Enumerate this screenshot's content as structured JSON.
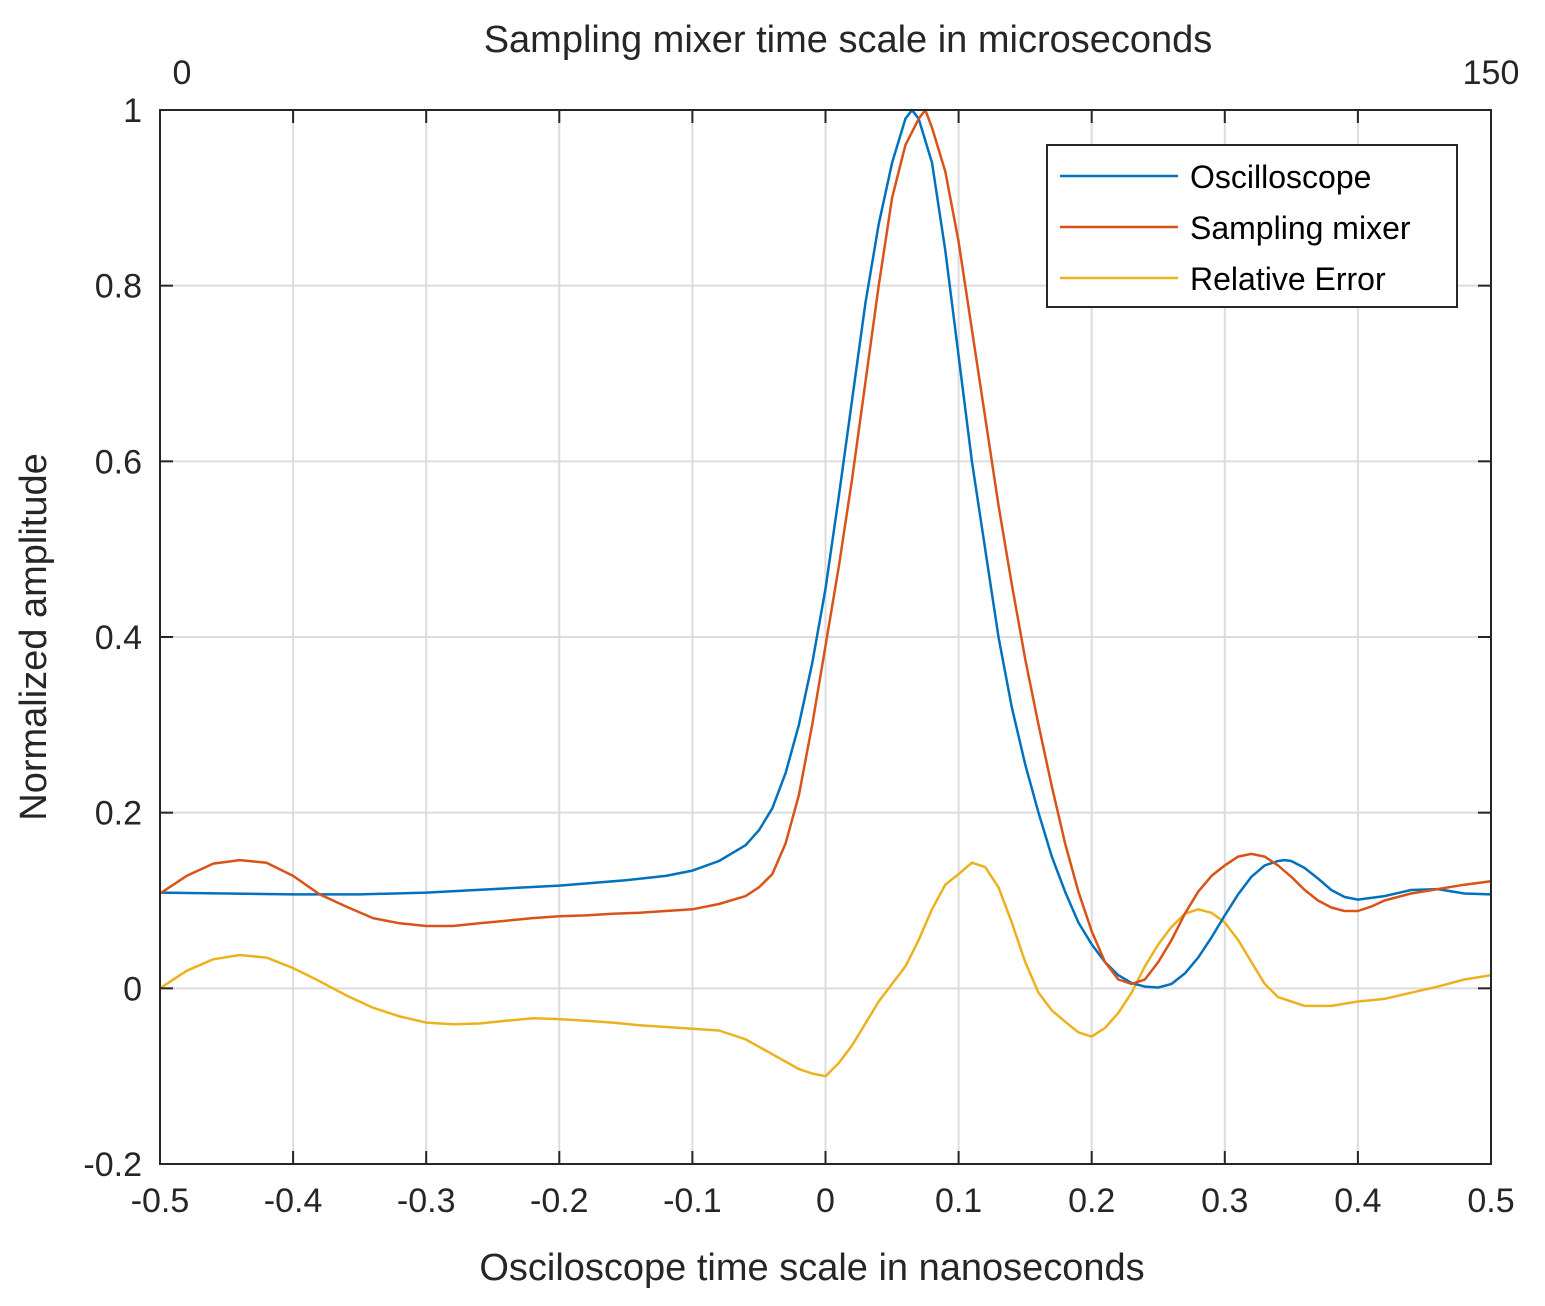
{
  "chart_data": {
    "type": "line",
    "title": "",
    "xlabel": "Osciloscope time scale in nanoseconds",
    "ylabel": "Normalized amplitude",
    "x2label": "Sampling mixer time scale in microseconds",
    "xlim": [
      -0.5,
      0.5
    ],
    "ylim": [
      -0.2,
      1
    ],
    "x2lim": [
      0,
      150
    ],
    "xticks": [
      -0.5,
      -0.4,
      -0.3,
      -0.2,
      -0.1,
      0,
      0.1,
      0.2,
      0.3,
      0.4,
      0.5
    ],
    "xtick_labels": [
      "-0.5",
      "-0.4",
      "-0.3",
      "-0.2",
      "-0.1",
      "0",
      "0.1",
      "0.2",
      "0.3",
      "0.4",
      "0.5"
    ],
    "yticks": [
      -0.2,
      0,
      0.2,
      0.4,
      0.6,
      0.8,
      1
    ],
    "ytick_labels": [
      "-0.2",
      "0",
      "0.2",
      "0.4",
      "0.6",
      "0.8",
      "1"
    ],
    "x2tick_labels": [
      "0",
      "150"
    ],
    "grid": true,
    "legend_position": "top-right",
    "series": [
      {
        "name": "Oscilloscope",
        "color": "#0072BD",
        "x": [
          -0.5,
          -0.45,
          -0.4,
          -0.35,
          -0.3,
          -0.25,
          -0.2,
          -0.15,
          -0.12,
          -0.1,
          -0.08,
          -0.06,
          -0.05,
          -0.04,
          -0.03,
          -0.02,
          -0.01,
          0,
          0.01,
          0.02,
          0.03,
          0.04,
          0.05,
          0.06,
          0.065,
          0.07,
          0.08,
          0.09,
          0.1,
          0.11,
          0.12,
          0.13,
          0.14,
          0.15,
          0.16,
          0.17,
          0.18,
          0.19,
          0.2,
          0.21,
          0.22,
          0.23,
          0.24,
          0.25,
          0.26,
          0.27,
          0.28,
          0.29,
          0.3,
          0.31,
          0.32,
          0.33,
          0.34,
          0.345,
          0.35,
          0.36,
          0.37,
          0.38,
          0.39,
          0.4,
          0.42,
          0.44,
          0.46,
          0.48,
          0.5
        ],
        "values": [
          0.109,
          0.108,
          0.107,
          0.107,
          0.109,
          0.113,
          0.117,
          0.123,
          0.128,
          0.134,
          0.145,
          0.163,
          0.18,
          0.205,
          0.245,
          0.3,
          0.37,
          0.455,
          0.56,
          0.67,
          0.78,
          0.87,
          0.94,
          0.99,
          1.0,
          0.99,
          0.94,
          0.84,
          0.72,
          0.6,
          0.5,
          0.4,
          0.32,
          0.255,
          0.2,
          0.15,
          0.11,
          0.075,
          0.05,
          0.03,
          0.015,
          0.006,
          0.002,
          0.001,
          0.005,
          0.017,
          0.035,
          0.058,
          0.083,
          0.107,
          0.127,
          0.14,
          0.145,
          0.146,
          0.145,
          0.137,
          0.125,
          0.112,
          0.104,
          0.101,
          0.105,
          0.112,
          0.113,
          0.108,
          0.107
        ]
      },
      {
        "name": "Sampling mixer",
        "color": "#D95319",
        "x": [
          -0.5,
          -0.48,
          -0.46,
          -0.44,
          -0.42,
          -0.4,
          -0.38,
          -0.36,
          -0.34,
          -0.32,
          -0.3,
          -0.28,
          -0.26,
          -0.24,
          -0.22,
          -0.2,
          -0.18,
          -0.16,
          -0.14,
          -0.12,
          -0.1,
          -0.08,
          -0.06,
          -0.05,
          -0.04,
          -0.03,
          -0.02,
          -0.01,
          0,
          0.01,
          0.02,
          0.03,
          0.04,
          0.05,
          0.06,
          0.07,
          0.075,
          0.08,
          0.09,
          0.1,
          0.11,
          0.12,
          0.13,
          0.14,
          0.15,
          0.16,
          0.17,
          0.18,
          0.19,
          0.2,
          0.21,
          0.22,
          0.23,
          0.24,
          0.25,
          0.26,
          0.27,
          0.28,
          0.29,
          0.3,
          0.31,
          0.32,
          0.33,
          0.34,
          0.35,
          0.36,
          0.37,
          0.38,
          0.39,
          0.4,
          0.41,
          0.42,
          0.44,
          0.46,
          0.48,
          0.5
        ],
        "values": [
          0.108,
          0.128,
          0.142,
          0.146,
          0.143,
          0.128,
          0.107,
          0.093,
          0.08,
          0.074,
          0.071,
          0.071,
          0.074,
          0.077,
          0.08,
          0.082,
          0.083,
          0.085,
          0.086,
          0.088,
          0.09,
          0.096,
          0.105,
          0.115,
          0.13,
          0.165,
          0.22,
          0.3,
          0.39,
          0.48,
          0.58,
          0.69,
          0.8,
          0.9,
          0.96,
          0.99,
          1.0,
          0.98,
          0.93,
          0.85,
          0.75,
          0.65,
          0.55,
          0.46,
          0.375,
          0.3,
          0.23,
          0.165,
          0.11,
          0.065,
          0.03,
          0.01,
          0.005,
          0.01,
          0.03,
          0.055,
          0.085,
          0.11,
          0.128,
          0.14,
          0.15,
          0.153,
          0.15,
          0.14,
          0.127,
          0.112,
          0.1,
          0.092,
          0.088,
          0.088,
          0.093,
          0.1,
          0.108,
          0.113,
          0.118,
          0.122
        ]
      },
      {
        "name": "Relative Error",
        "color": "#EDB120",
        "x": [
          -0.5,
          -0.48,
          -0.46,
          -0.44,
          -0.42,
          -0.4,
          -0.38,
          -0.36,
          -0.34,
          -0.32,
          -0.3,
          -0.28,
          -0.26,
          -0.24,
          -0.22,
          -0.2,
          -0.18,
          -0.16,
          -0.14,
          -0.12,
          -0.1,
          -0.08,
          -0.06,
          -0.04,
          -0.02,
          -0.01,
          0,
          0.01,
          0.02,
          0.03,
          0.04,
          0.05,
          0.06,
          0.07,
          0.08,
          0.09,
          0.1,
          0.11,
          0.12,
          0.13,
          0.14,
          0.15,
          0.16,
          0.17,
          0.18,
          0.19,
          0.2,
          0.21,
          0.22,
          0.23,
          0.24,
          0.25,
          0.26,
          0.27,
          0.28,
          0.29,
          0.3,
          0.31,
          0.32,
          0.33,
          0.34,
          0.36,
          0.38,
          0.4,
          0.42,
          0.44,
          0.46,
          0.48,
          0.5
        ],
        "values": [
          0.0,
          0.02,
          0.033,
          0.038,
          0.035,
          0.023,
          0.008,
          -0.008,
          -0.022,
          -0.032,
          -0.039,
          -0.041,
          -0.04,
          -0.037,
          -0.034,
          -0.035,
          -0.037,
          -0.039,
          -0.042,
          -0.044,
          -0.046,
          -0.048,
          -0.058,
          -0.075,
          -0.092,
          -0.097,
          -0.1,
          -0.085,
          -0.065,
          -0.04,
          -0.015,
          0.005,
          0.025,
          0.055,
          0.09,
          0.118,
          0.13,
          0.143,
          0.138,
          0.115,
          0.075,
          0.03,
          -0.005,
          -0.025,
          -0.038,
          -0.05,
          -0.055,
          -0.045,
          -0.028,
          -0.005,
          0.025,
          0.05,
          0.07,
          0.085,
          0.09,
          0.086,
          0.075,
          0.055,
          0.03,
          0.005,
          -0.01,
          -0.02,
          -0.02,
          -0.015,
          -0.012,
          -0.005,
          0.002,
          0.01,
          0.015
        ]
      }
    ]
  }
}
